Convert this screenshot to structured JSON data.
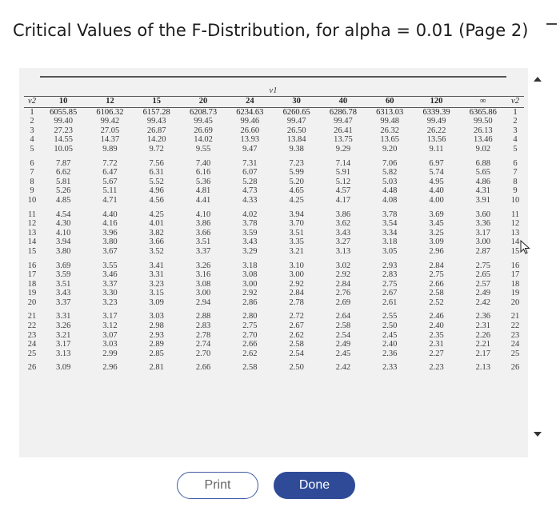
{
  "title": "Critical Values of the F-Distribution, for alpha = 0.01 (Page 2)",
  "table": {
    "nu1_label": "ν1",
    "nu2_label": "ν2",
    "columns": [
      "10",
      "12",
      "15",
      "20",
      "24",
      "30",
      "40",
      "60",
      "120",
      "∞"
    ],
    "rows": [
      {
        "v2": "1",
        "vals": [
          "6055.85",
          "6106.32",
          "6157.28",
          "6208.73",
          "6234.63",
          "6260.65",
          "6286.78",
          "6313.03",
          "6339.39",
          "6365.86"
        ]
      },
      {
        "v2": "2",
        "vals": [
          "99.40",
          "99.42",
          "99.43",
          "99.45",
          "99.46",
          "99.47",
          "99.47",
          "99.48",
          "99.49",
          "99.50"
        ]
      },
      {
        "v2": "3",
        "vals": [
          "27.23",
          "27.05",
          "26.87",
          "26.69",
          "26.60",
          "26.50",
          "26.41",
          "26.32",
          "26.22",
          "26.13"
        ]
      },
      {
        "v2": "4",
        "vals": [
          "14.55",
          "14.37",
          "14.20",
          "14.02",
          "13.93",
          "13.84",
          "13.75",
          "13.65",
          "13.56",
          "13.46"
        ]
      },
      {
        "v2": "5",
        "vals": [
          "10.05",
          "9.89",
          "9.72",
          "9.55",
          "9.47",
          "9.38",
          "9.29",
          "9.20",
          "9.11",
          "9.02"
        ]
      },
      {
        "v2": "6",
        "vals": [
          "7.87",
          "7.72",
          "7.56",
          "7.40",
          "7.31",
          "7.23",
          "7.14",
          "7.06",
          "6.97",
          "6.88"
        ]
      },
      {
        "v2": "7",
        "vals": [
          "6.62",
          "6.47",
          "6.31",
          "6.16",
          "6.07",
          "5.99",
          "5.91",
          "5.82",
          "5.74",
          "5.65"
        ]
      },
      {
        "v2": "8",
        "vals": [
          "5.81",
          "5.67",
          "5.52",
          "5.36",
          "5.28",
          "5.20",
          "5.12",
          "5.03",
          "4.95",
          "4.86"
        ]
      },
      {
        "v2": "9",
        "vals": [
          "5.26",
          "5.11",
          "4.96",
          "4.81",
          "4.73",
          "4.65",
          "4.57",
          "4.48",
          "4.40",
          "4.31"
        ]
      },
      {
        "v2": "10",
        "vals": [
          "4.85",
          "4.71",
          "4.56",
          "4.41",
          "4.33",
          "4.25",
          "4.17",
          "4.08",
          "4.00",
          "3.91"
        ]
      },
      {
        "v2": "11",
        "vals": [
          "4.54",
          "4.40",
          "4.25",
          "4.10",
          "4.02",
          "3.94",
          "3.86",
          "3.78",
          "3.69",
          "3.60"
        ]
      },
      {
        "v2": "12",
        "vals": [
          "4.30",
          "4.16",
          "4.01",
          "3.86",
          "3.78",
          "3.70",
          "3.62",
          "3.54",
          "3.45",
          "3.36"
        ]
      },
      {
        "v2": "13",
        "vals": [
          "4.10",
          "3.96",
          "3.82",
          "3.66",
          "3.59",
          "3.51",
          "3.43",
          "3.34",
          "3.25",
          "3.17"
        ]
      },
      {
        "v2": "14",
        "vals": [
          "3.94",
          "3.80",
          "3.66",
          "3.51",
          "3.43",
          "3.35",
          "3.27",
          "3.18",
          "3.09",
          "3.00"
        ]
      },
      {
        "v2": "15",
        "vals": [
          "3.80",
          "3.67",
          "3.52",
          "3.37",
          "3.29",
          "3.21",
          "3.13",
          "3.05",
          "2.96",
          "2.87"
        ]
      },
      {
        "v2": "16",
        "vals": [
          "3.69",
          "3.55",
          "3.41",
          "3.26",
          "3.18",
          "3.10",
          "3.02",
          "2.93",
          "2.84",
          "2.75"
        ]
      },
      {
        "v2": "17",
        "vals": [
          "3.59",
          "3.46",
          "3.31",
          "3.16",
          "3.08",
          "3.00",
          "2.92",
          "2.83",
          "2.75",
          "2.65"
        ]
      },
      {
        "v2": "18",
        "vals": [
          "3.51",
          "3.37",
          "3.23",
          "3.08",
          "3.00",
          "2.92",
          "2.84",
          "2.75",
          "2.66",
          "2.57"
        ]
      },
      {
        "v2": "19",
        "vals": [
          "3.43",
          "3.30",
          "3.15",
          "3.00",
          "2.92",
          "2.84",
          "2.76",
          "2.67",
          "2.58",
          "2.49"
        ]
      },
      {
        "v2": "20",
        "vals": [
          "3.37",
          "3.23",
          "3.09",
          "2.94",
          "2.86",
          "2.78",
          "2.69",
          "2.61",
          "2.52",
          "2.42"
        ]
      },
      {
        "v2": "21",
        "vals": [
          "3.31",
          "3.17",
          "3.03",
          "2.88",
          "2.80",
          "2.72",
          "2.64",
          "2.55",
          "2.46",
          "2.36"
        ]
      },
      {
        "v2": "22",
        "vals": [
          "3.26",
          "3.12",
          "2.98",
          "2.83",
          "2.75",
          "2.67",
          "2.58",
          "2.50",
          "2.40",
          "2.31"
        ]
      },
      {
        "v2": "23",
        "vals": [
          "3.21",
          "3.07",
          "2.93",
          "2.78",
          "2.70",
          "2.62",
          "2.54",
          "2.45",
          "2.35",
          "2.26"
        ]
      },
      {
        "v2": "24",
        "vals": [
          "3.17",
          "3.03",
          "2.89",
          "2.74",
          "2.66",
          "2.58",
          "2.49",
          "2.40",
          "2.31",
          "2.21"
        ]
      },
      {
        "v2": "25",
        "vals": [
          "3.13",
          "2.99",
          "2.85",
          "2.70",
          "2.62",
          "2.54",
          "2.45",
          "2.36",
          "2.27",
          "2.17"
        ]
      },
      {
        "v2": "26",
        "vals": [
          "3.09",
          "2.96",
          "2.81",
          "2.66",
          "2.58",
          "2.50",
          "2.42",
          "2.33",
          "2.23",
          "2.13"
        ]
      }
    ]
  },
  "buttons": {
    "print": "Print",
    "done": "Done"
  },
  "colors": {
    "done_bg": "#2f4b98",
    "print_border": "#3f5ba6"
  }
}
